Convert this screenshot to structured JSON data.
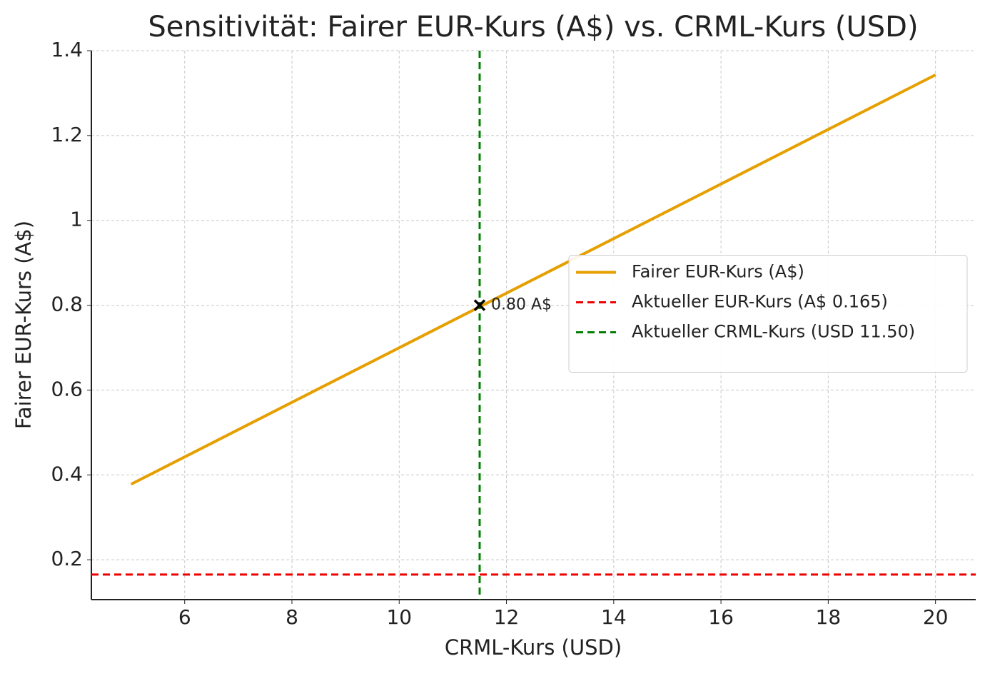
{
  "chart_data": {
    "type": "line",
    "title": "Sensitivität: Fairer EUR-Kurs (A$) vs. CRML-Kurs (USD)",
    "x_label": "CRML-Kurs (USD)",
    "y_label": "Fairer EUR-Kurs (A$)",
    "x": [
      5,
      20
    ],
    "series": [
      {
        "name": "Fairer EUR-Kurs (A$)",
        "color": "#e69f00",
        "values": [
          0.378,
          1.343
        ]
      }
    ],
    "hlines": [
      {
        "name": "Aktueller EUR-Kurs (A$ 0.165)",
        "color": "#ee0000",
        "value": 0.165
      }
    ],
    "vlines": [
      {
        "name": "Aktueller CRML-Kurs (USD 11.50)",
        "color": "#008000",
        "value": 11.5
      }
    ],
    "annotation": {
      "x": 11.5,
      "y": 0.8,
      "label": "0.80 A$"
    },
    "xlim": [
      4.26,
      20.75
    ],
    "xticks": [
      6,
      8,
      10,
      12,
      14,
      16,
      18,
      20
    ],
    "ylim": [
      0.106,
      1.4
    ],
    "yticks": [
      0.2,
      0.4,
      0.6,
      0.8,
      1.0,
      1.2,
      1.4
    ],
    "grid": true,
    "legend": "center right"
  }
}
